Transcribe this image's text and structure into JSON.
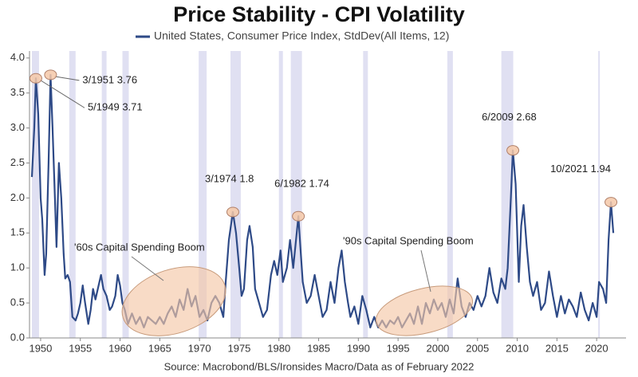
{
  "chart_data": {
    "type": "line",
    "title": "Price Stability - CPI Volatility",
    "source": "Source: Macrobond/BLS/Ironsides Macro/Data as of February 2022",
    "xlim": [
      1948.6,
      2023.7
    ],
    "ylim": [
      0,
      4.1
    ],
    "xticks": [
      1950,
      1955,
      1960,
      1965,
      1970,
      1975,
      1980,
      1985,
      1990,
      1995,
      2000,
      2005,
      2010,
      2015,
      2020
    ],
    "yticks": [
      {
        "value": 0,
        "label": "0.0"
      },
      {
        "value": 0.5,
        "label": "0.5"
      },
      {
        "value": 1,
        "label": "1.0"
      },
      {
        "value": 1.5,
        "label": "1.5"
      },
      {
        "value": 2,
        "label": "2.0"
      },
      {
        "value": 2.5,
        "label": "2.5"
      },
      {
        "value": 3,
        "label": "3.0"
      },
      {
        "value": 3.5,
        "label": "3.5"
      },
      {
        "value": 4,
        "label": "4.0"
      }
    ],
    "shaded_periods": [
      [
        1948.9,
        1949.8
      ],
      [
        1953.6,
        1954.4
      ],
      [
        1957.7,
        1958.3
      ],
      [
        1960.3,
        1961.1
      ],
      [
        1969.9,
        1970.9
      ],
      [
        1973.9,
        1975.2
      ],
      [
        1980.0,
        1980.5
      ],
      [
        1981.5,
        1982.9
      ],
      [
        1990.6,
        1991.2
      ],
      [
        2001.2,
        2001.9
      ],
      [
        2008.0,
        2009.5
      ],
      [
        2020.2,
        2020.35
      ]
    ],
    "x": [
      1948.9,
      1949.2,
      1949.4,
      1949.7,
      1950.0,
      1950.2,
      1950.5,
      1950.7,
      1951.0,
      1951.25,
      1951.5,
      1951.8,
      1952.0,
      1952.3,
      1952.6,
      1952.9,
      1953.1,
      1953.4,
      1953.7,
      1954.0,
      1954.4,
      1954.7,
      1955.0,
      1955.3,
      1955.6,
      1956.0,
      1956.3,
      1956.6,
      1956.9,
      1957.3,
      1957.6,
      1957.9,
      1958.3,
      1958.7,
      1959.0,
      1959.4,
      1959.7,
      1960.0,
      1960.3,
      1960.6,
      1961.0,
      1961.5,
      1962.0,
      1962.5,
      1963.0,
      1963.5,
      1964.0,
      1964.5,
      1965.0,
      1965.5,
      1966.0,
      1966.5,
      1967.0,
      1967.5,
      1968.0,
      1968.5,
      1969.0,
      1969.5,
      1970.0,
      1970.5,
      1971.0,
      1971.5,
      1972.0,
      1972.5,
      1973.0,
      1973.3,
      1973.7,
      1974.2,
      1974.6,
      1975.0,
      1975.3,
      1975.6,
      1976.0,
      1976.3,
      1976.7,
      1977.0,
      1977.5,
      1978.0,
      1978.5,
      1979.0,
      1979.4,
      1979.8,
      1980.2,
      1980.5,
      1981.0,
      1981.4,
      1981.8,
      1982.45,
      1982.7,
      1983.0,
      1983.5,
      1984.0,
      1984.5,
      1985.0,
      1985.5,
      1986.0,
      1986.5,
      1987.0,
      1987.5,
      1987.9,
      1988.3,
      1988.7,
      1989.0,
      1989.5,
      1990.0,
      1990.5,
      1991.0,
      1991.5,
      1992.0,
      1992.5,
      1993.0,
      1993.5,
      1994.0,
      1994.5,
      1995.0,
      1995.5,
      1996.0,
      1996.5,
      1997.0,
      1997.5,
      1998.0,
      1998.5,
      1999.0,
      1999.5,
      2000.0,
      2000.5,
      2001.0,
      2001.5,
      2002.0,
      2002.5,
      2003.0,
      2003.5,
      2004.0,
      2004.5,
      2005.0,
      2005.5,
      2006.0,
      2006.5,
      2007.0,
      2007.5,
      2008.0,
      2008.5,
      2008.8,
      2009.2,
      2009.45,
      2009.8,
      2010.2,
      2010.5,
      2010.8,
      2011.2,
      2011.6,
      2012.0,
      2012.5,
      2013.0,
      2013.5,
      2014.0,
      2014.5,
      2015.0,
      2015.5,
      2016.0,
      2016.5,
      2017.0,
      2017.5,
      2018.0,
      2018.5,
      2019.0,
      2019.5,
      2020.0,
      2020.3,
      2020.8,
      2021.2,
      2021.5,
      2021.8,
      2022.1
    ],
    "series": [
      {
        "name": "United States, Consumer Price Index, StdDev(All Items, 12)",
        "color": "#2e4a87",
        "values": [
          2.3,
          3.0,
          3.71,
          3.2,
          2.0,
          1.7,
          0.9,
          1.2,
          2.5,
          3.76,
          3.0,
          2.0,
          1.3,
          2.5,
          2.0,
          1.2,
          0.85,
          0.9,
          0.8,
          0.3,
          0.25,
          0.35,
          0.5,
          0.75,
          0.5,
          0.2,
          0.4,
          0.7,
          0.55,
          0.75,
          0.9,
          0.7,
          0.6,
          0.4,
          0.45,
          0.6,
          0.9,
          0.75,
          0.5,
          0.4,
          0.2,
          0.35,
          0.2,
          0.3,
          0.15,
          0.3,
          0.25,
          0.2,
          0.3,
          0.2,
          0.35,
          0.45,
          0.3,
          0.55,
          0.4,
          0.7,
          0.45,
          0.6,
          0.3,
          0.4,
          0.25,
          0.5,
          0.6,
          0.5,
          0.3,
          0.8,
          1.4,
          1.8,
          1.5,
          1.0,
          0.6,
          0.7,
          1.4,
          1.6,
          1.3,
          0.7,
          0.5,
          0.3,
          0.4,
          0.9,
          1.1,
          0.9,
          1.25,
          0.8,
          1.0,
          1.4,
          1.0,
          1.74,
          1.3,
          0.8,
          0.5,
          0.6,
          0.9,
          0.6,
          0.3,
          0.4,
          0.8,
          0.5,
          1.0,
          1.25,
          0.8,
          0.5,
          0.3,
          0.45,
          0.2,
          0.6,
          0.4,
          0.15,
          0.3,
          0.15,
          0.25,
          0.15,
          0.25,
          0.2,
          0.3,
          0.15,
          0.25,
          0.35,
          0.2,
          0.45,
          0.2,
          0.5,
          0.35,
          0.55,
          0.4,
          0.5,
          0.3,
          0.55,
          0.35,
          0.85,
          0.45,
          0.3,
          0.5,
          0.4,
          0.6,
          0.45,
          0.6,
          1.0,
          0.65,
          0.5,
          0.85,
          0.7,
          1.0,
          2.0,
          2.68,
          2.2,
          0.8,
          1.6,
          1.9,
          1.3,
          0.8,
          0.6,
          0.8,
          0.4,
          0.5,
          0.95,
          0.6,
          0.3,
          0.6,
          0.35,
          0.55,
          0.45,
          0.3,
          0.65,
          0.4,
          0.25,
          0.5,
          0.3,
          0.8,
          0.7,
          0.5,
          1.4,
          1.94,
          1.5
        ]
      }
    ],
    "annotations": [
      {
        "text": "3/1951 3.76",
        "x": 1951.25,
        "y": 3.76
      },
      {
        "text": "5/1949 3.71",
        "x": 1949.4,
        "y": 3.71
      },
      {
        "text": "3/1974 1.8",
        "x": 1974.2,
        "y": 1.8
      },
      {
        "text": "6/1982 1.74",
        "x": 1982.45,
        "y": 1.74
      },
      {
        "text": "6/2009 2.68",
        "x": 2009.45,
        "y": 2.68
      },
      {
        "text": "10/2021 1.94",
        "x": 2021.8,
        "y": 1.94
      }
    ],
    "callouts": [
      "'60s Capital Spending Boom",
      "'90s Capital Spending Boom"
    ]
  }
}
